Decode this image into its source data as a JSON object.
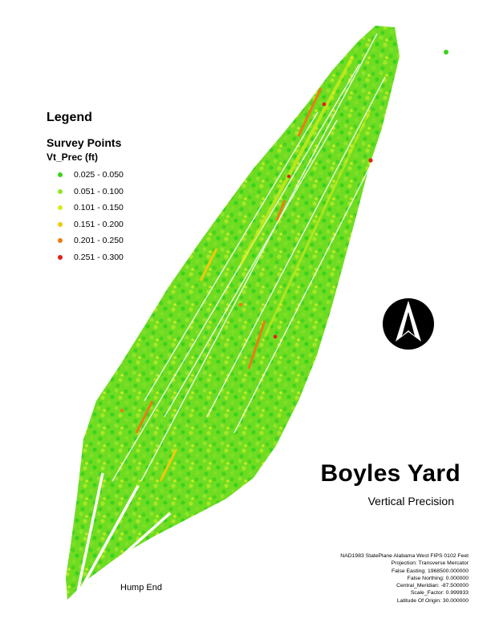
{
  "legend": {
    "title": "Legend",
    "layer": "Survey Points",
    "field": "Vt_Prec (ft)",
    "classes": [
      {
        "label": "0.025 - 0.050",
        "color": "#3ad31c"
      },
      {
        "label": "0.051 - 0.100",
        "color": "#8ee628"
      },
      {
        "label": "0.101 - 0.150",
        "color": "#d8ec1c"
      },
      {
        "label": "0.151 - 0.200",
        "color": "#f2c80a"
      },
      {
        "label": "0.201 - 0.250",
        "color": "#ee7a14"
      },
      {
        "label": "0.251 - 0.300",
        "color": "#e0201a"
      }
    ]
  },
  "map": {
    "title": "Boyles Yard",
    "subtitle": "Vertical Precision",
    "label_hump_end": "Hump End",
    "north_arrow_icon": "north-arrow-icon"
  },
  "projection_info": [
    "NAD1983 StatePlane Alabama West FIPS 0102 Feet",
    "Projection: Transverse Mercator",
    "False Easting: 1968500.000000",
    "False Northing: 0.000000",
    "Central_Meridian: -87.500000",
    "Scale_Factor: 0.999933",
    "Latitude Of Origin: 30.000000"
  ]
}
